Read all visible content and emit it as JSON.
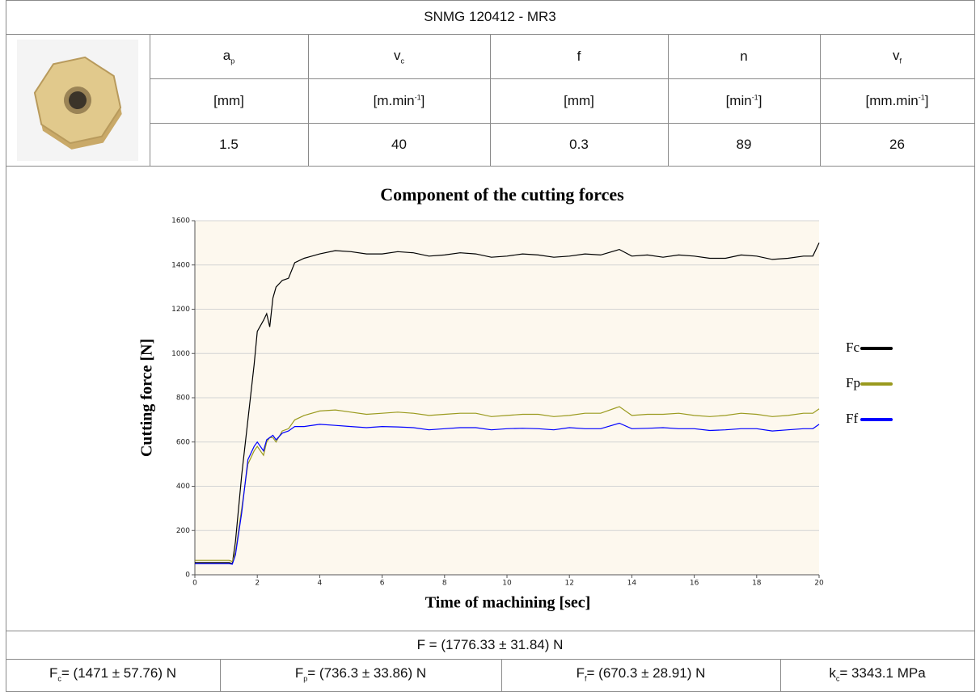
{
  "header": {
    "title": "SNMG 120412 - MR3"
  },
  "parameters": [
    {
      "symbol": "a",
      "sub": "p",
      "unit": {
        "text": "[mm]"
      },
      "value": 1.5
    },
    {
      "symbol": "v",
      "sub": "c",
      "unit": {
        "text": "[m.min",
        "sup": "-1",
        "tail": "]"
      },
      "value": 40
    },
    {
      "symbol": "f",
      "unit": {
        "text": "[mm]"
      },
      "value": 0.3
    },
    {
      "symbol": "n",
      "unit": {
        "text": "[min",
        "sup": "-1",
        "tail": "]"
      },
      "value": 89
    },
    {
      "symbol": "v",
      "sub": "f",
      "unit": {
        "text": "[mm.min",
        "sup": "-1",
        "tail": "]"
      },
      "value": 26
    }
  ],
  "chart_data": {
    "type": "line",
    "title": "Component of the cutting forces",
    "x_label": "Time of machining [sec]",
    "y_label": "Cutting force [N]",
    "x": [
      0,
      1.1,
      1.2,
      1.3,
      1.5,
      1.7,
      1.9,
      2.0,
      2.2,
      2.3,
      2.4,
      2.5,
      2.6,
      2.8,
      3.0,
      3.2,
      3.5,
      4,
      4.5,
      5,
      5.5,
      6,
      6.5,
      7,
      7.5,
      8,
      8.5,
      9,
      9.5,
      10,
      10.5,
      11,
      11.5,
      12,
      12.5,
      13,
      13.6,
      14,
      14.5,
      15,
      15.5,
      16,
      16.5,
      17,
      17.5,
      18,
      18.5,
      19,
      19.5,
      19.8,
      20
    ],
    "series": [
      {
        "name": "Fc",
        "color": "#000000",
        "values": [
          55,
          55,
          50,
          150,
          450,
          700,
          950,
          1100,
          1150,
          1180,
          1120,
          1250,
          1300,
          1330,
          1340,
          1410,
          1430,
          1450,
          1465,
          1460,
          1450,
          1450,
          1460,
          1455,
          1440,
          1445,
          1455,
          1450,
          1435,
          1440,
          1450,
          1445,
          1435,
          1440,
          1450,
          1445,
          1470,
          1440,
          1445,
          1435,
          1445,
          1440,
          1430,
          1430,
          1445,
          1440,
          1425,
          1430,
          1440,
          1440,
          1500
        ]
      },
      {
        "name": "Fp",
        "color": "#9a9a1e",
        "values": [
          65,
          65,
          60,
          100,
          300,
          500,
          560,
          580,
          540,
          600,
          620,
          620,
          600,
          650,
          660,
          700,
          720,
          740,
          745,
          735,
          725,
          730,
          735,
          730,
          720,
          725,
          730,
          730,
          715,
          720,
          725,
          725,
          715,
          720,
          730,
          730,
          760,
          720,
          725,
          725,
          730,
          720,
          715,
          720,
          730,
          725,
          715,
          720,
          730,
          730,
          750
        ]
      },
      {
        "name": "Ff",
        "color": "#0000ff",
        "values": [
          50,
          50,
          48,
          90,
          280,
          520,
          580,
          600,
          560,
          610,
          620,
          630,
          610,
          640,
          650,
          670,
          670,
          680,
          675,
          670,
          665,
          670,
          668,
          665,
          655,
          660,
          665,
          665,
          655,
          660,
          662,
          660,
          655,
          665,
          660,
          660,
          685,
          660,
          662,
          665,
          660,
          660,
          652,
          655,
          660,
          660,
          650,
          655,
          660,
          660,
          680
        ]
      }
    ],
    "xlim": [
      0,
      20
    ],
    "xticks": [
      0,
      2,
      4,
      6,
      8,
      10,
      12,
      14,
      16,
      18,
      20
    ],
    "ylim": [
      0,
      1600
    ],
    "yticks": [
      0,
      200,
      400,
      600,
      800,
      1000,
      1200,
      1400,
      1600
    ],
    "grid": true,
    "legend": "right"
  },
  "results": {
    "total": "F = (1776.33 ± 31.84) N",
    "components": [
      {
        "symbol": "F",
        "sub": "c",
        "text": "= (1471 ± 57.76) N"
      },
      {
        "symbol": "F",
        "sub": "p",
        "text": "= (736.3 ± 33.86) N"
      },
      {
        "symbol": "F",
        "sub": "f",
        "text": "= (670.3 ± 28.91) N"
      },
      {
        "symbol": "k",
        "sub": "c",
        "text": "= 3343.1 MPa"
      }
    ]
  }
}
